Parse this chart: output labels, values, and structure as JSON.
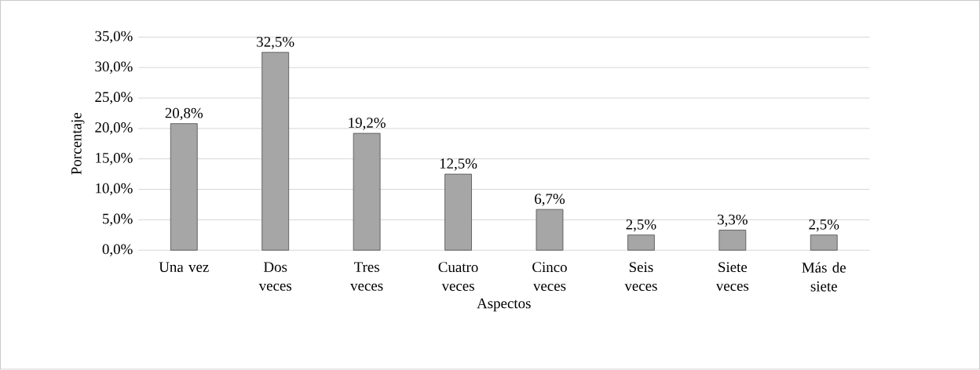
{
  "chart_data": {
    "type": "bar",
    "xlabel": "Aspectos",
    "ylabel": "Porcentaje",
    "categories": [
      "Una vez",
      "Dos veces",
      "Tres veces",
      "Cuatro veces",
      "Cinco veces",
      "Seis veces",
      "Siete veces",
      "Más de siete"
    ],
    "values": [
      20.8,
      32.5,
      19.2,
      12.5,
      6.7,
      2.5,
      3.3,
      2.5
    ],
    "value_labels": [
      "20,8%",
      "32,5%",
      "19,2%",
      "12,5%",
      "6,7%",
      "2,5%",
      "3,3%",
      "2,5%"
    ],
    "color": "#a6a6a6",
    "ylim": [
      0,
      35
    ],
    "yticks": [
      {
        "value": 0,
        "label": "0,0%"
      },
      {
        "value": 5,
        "label": "5,0%"
      },
      {
        "value": 10,
        "label": "10,0%"
      },
      {
        "value": 15,
        "label": "15,0%"
      },
      {
        "value": 20,
        "label": "20,0%"
      },
      {
        "value": 25,
        "label": "25,0%"
      },
      {
        "value": 30,
        "label": "30,0%"
      },
      {
        "value": 35,
        "label": "35,0%"
      }
    ],
    "grid": "y"
  }
}
